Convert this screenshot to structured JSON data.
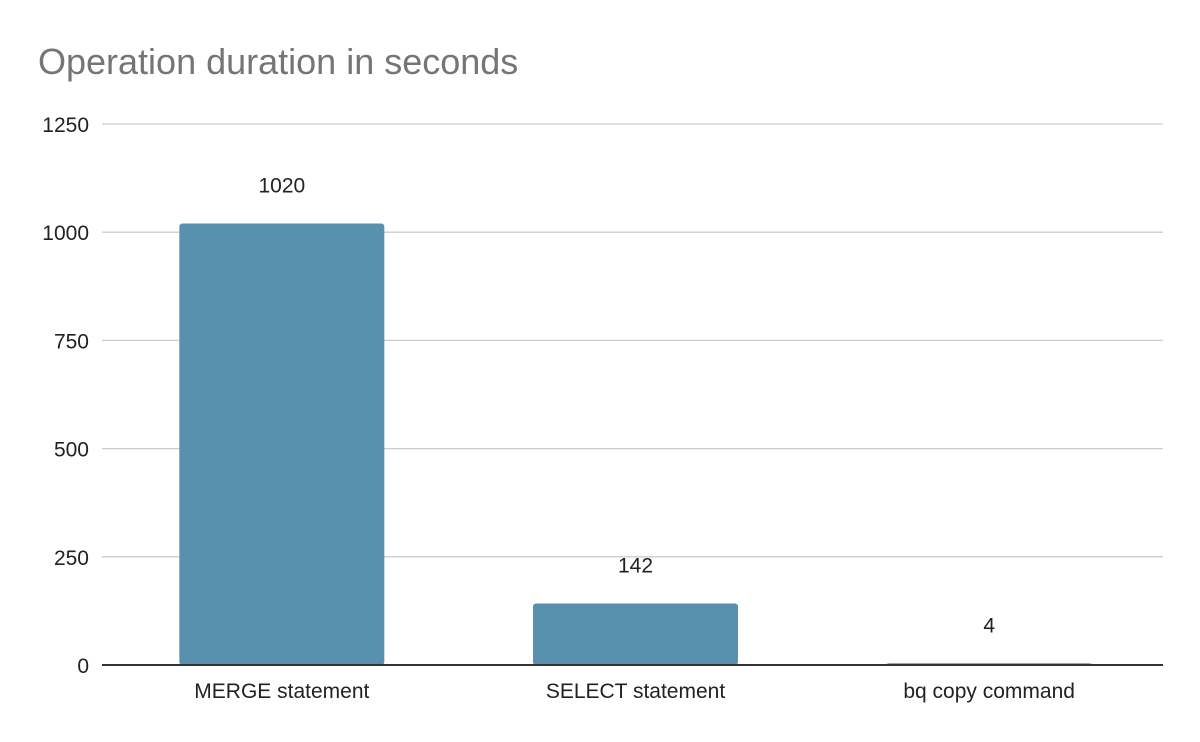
{
  "chart_data": {
    "type": "bar",
    "title": "Operation duration in seconds",
    "categories": [
      "MERGE statement",
      "SELECT statement",
      "bq copy command"
    ],
    "values": [
      1020,
      142,
      4
    ],
    "data_labels": [
      "1020",
      "142",
      "4"
    ],
    "xlabel": "",
    "ylabel": "",
    "ylim": [
      0,
      1250
    ],
    "yticks": [
      0,
      250,
      500,
      750,
      1000,
      1250
    ],
    "ytick_labels": [
      "0",
      "250",
      "500",
      "750",
      "1000",
      "1250"
    ],
    "grid": true,
    "legend": "none",
    "colors": {
      "bar": "#5891ad",
      "grid": "#cccccc",
      "axis": "#333333",
      "title": "#757575"
    }
  }
}
